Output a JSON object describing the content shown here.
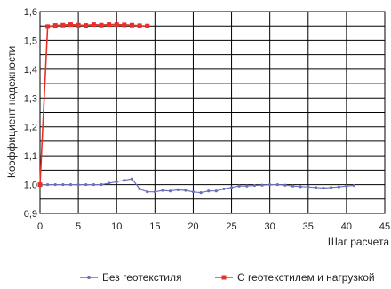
{
  "chart_data": {
    "type": "line",
    "xlabel": "Шаг расчета",
    "ylabel": "Коэффициент надежности",
    "xlim": [
      0,
      45
    ],
    "ylim": [
      0.9,
      1.6
    ],
    "x_ticks": [
      "0",
      "5",
      "10",
      "15",
      "20",
      "25",
      "30",
      "35",
      "40",
      "45"
    ],
    "y_ticks": [
      "0,9",
      "1,0",
      "1,1",
      "1,2",
      "1,3",
      "1,4",
      "1,5",
      "1,6"
    ],
    "grid": true,
    "legend_position": "bottom",
    "series": [
      {
        "name": "Без геотекстиля",
        "color": "#6a6fb8",
        "marker": "circle",
        "x": [
          0,
          1,
          2,
          3,
          4,
          5,
          6,
          7,
          8,
          9,
          10,
          11,
          12,
          13,
          14,
          15,
          16,
          17,
          18,
          19,
          20,
          21,
          22,
          23,
          24,
          25,
          26,
          27,
          28,
          29,
          30,
          31,
          32,
          33,
          34,
          35,
          36,
          37,
          38,
          39,
          40,
          41
        ],
        "y": [
          1.0,
          1.0,
          1.0,
          1.0,
          1.0,
          1.0,
          1.0,
          1.0,
          1.0,
          1.005,
          1.01,
          1.015,
          1.02,
          0.985,
          0.975,
          0.975,
          0.98,
          0.978,
          0.982,
          0.98,
          0.975,
          0.972,
          0.978,
          0.978,
          0.985,
          0.99,
          0.995,
          0.995,
          0.997,
          0.998,
          1.0,
          1.0,
          0.998,
          0.995,
          0.993,
          0.992,
          0.99,
          0.988,
          0.99,
          0.992,
          0.995,
          0.997
        ]
      },
      {
        "name": "С геотекстилем и нагрузкой",
        "color": "#e8302a",
        "marker": "square",
        "x": [
          0,
          1,
          2,
          3,
          4,
          5,
          6,
          7,
          8,
          9,
          10,
          11,
          12,
          13,
          14
        ],
        "y": [
          1.0,
          1.548,
          1.552,
          1.553,
          1.555,
          1.553,
          1.552,
          1.555,
          1.553,
          1.555,
          1.555,
          1.554,
          1.553,
          1.551,
          1.55
        ]
      }
    ]
  }
}
